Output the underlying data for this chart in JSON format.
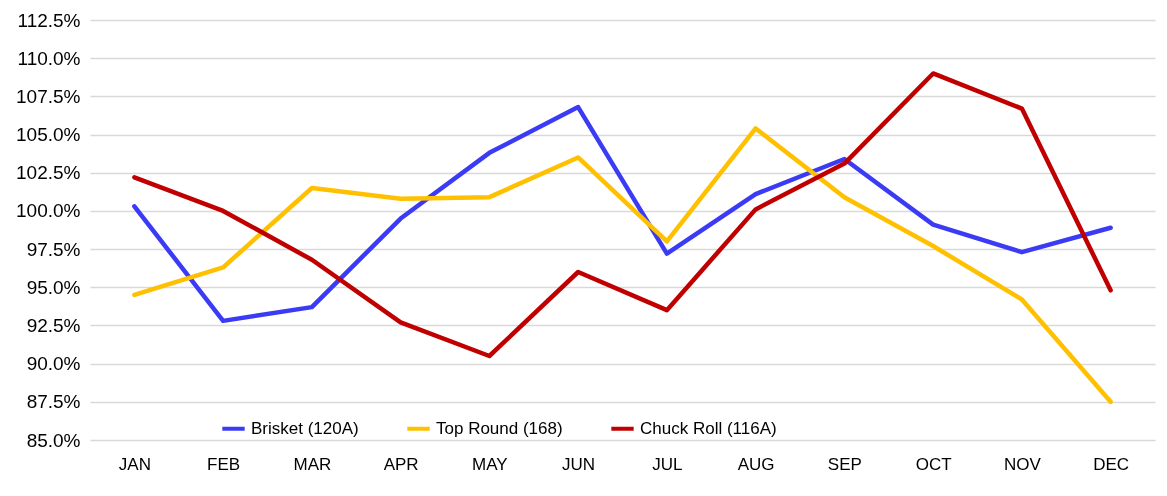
{
  "chart_data": {
    "type": "line",
    "categories": [
      "JAN",
      "FEB",
      "MAR",
      "APR",
      "MAY",
      "JUN",
      "JUL",
      "AUG",
      "SEP",
      "OCT",
      "NOV",
      "DEC"
    ],
    "series": [
      {
        "name": "Brisket (120A)",
        "color": "#3b3bf5",
        "values": [
          100.3,
          92.8,
          93.7,
          99.5,
          103.8,
          106.8,
          97.2,
          101.1,
          103.4,
          99.1,
          97.3,
          98.9
        ]
      },
      {
        "name": "Top Round (168)",
        "color": "#ffc000",
        "values": [
          94.5,
          96.3,
          101.5,
          100.8,
          100.9,
          103.5,
          98.0,
          105.4,
          100.9,
          97.7,
          94.2,
          87.5
        ]
      },
      {
        "name": "Chuck Roll (116A)",
        "color": "#c00000",
        "values": [
          102.2,
          100.0,
          96.8,
          92.7,
          90.5,
          96.0,
          93.5,
          100.1,
          103.1,
          109.0,
          106.7,
          94.8
        ]
      }
    ],
    "ylim": [
      85,
      112.5
    ],
    "yticks": [
      {
        "value": 85,
        "label": "85.0%"
      },
      {
        "value": 87.5,
        "label": "87.5%"
      },
      {
        "value": 90,
        "label": "90.0%"
      },
      {
        "value": 92.5,
        "label": "92.5%"
      },
      {
        "value": 95,
        "label": "95.0%"
      },
      {
        "value": 97.5,
        "label": "97.5%"
      },
      {
        "value": 100,
        "label": "100.0%"
      },
      {
        "value": 102.5,
        "label": "102.5%"
      },
      {
        "value": 105,
        "label": "105.0%"
      },
      {
        "value": 107.5,
        "label": "107.5%"
      },
      {
        "value": 110,
        "label": "110.0%"
      },
      {
        "value": 112.5,
        "label": "112.5%"
      }
    ],
    "grid": "y",
    "legend": "bottom",
    "marker": "none",
    "line_style": "solid"
  }
}
